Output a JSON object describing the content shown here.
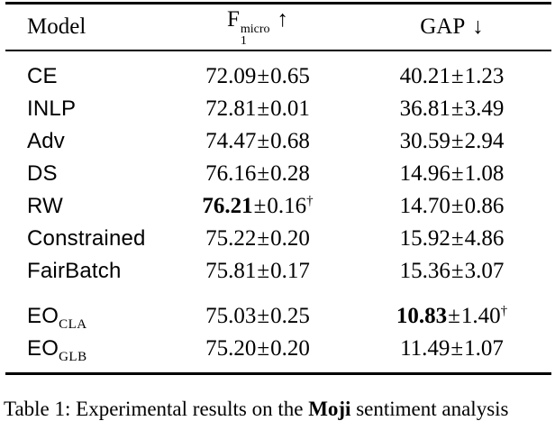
{
  "table": {
    "plus_minus": "±",
    "header": {
      "model": "Model",
      "f1_base": "F",
      "f1_sup": "micro",
      "f1_sub": "1",
      "f1_arrow": "↑",
      "gap": "GAP",
      "gap_arrow": "↓"
    },
    "rows": [
      {
        "model": "CE",
        "model_sub": "",
        "f1": {
          "mean": "72.09",
          "std": "0.65",
          "bold": false,
          "dagger": ""
        },
        "gap": {
          "mean": "40.21",
          "std": "1.23",
          "bold": false,
          "dagger": ""
        }
      },
      {
        "model": "INLP",
        "model_sub": "",
        "f1": {
          "mean": "72.81",
          "std": "0.01",
          "bold": false,
          "dagger": ""
        },
        "gap": {
          "mean": "36.81",
          "std": "3.49",
          "bold": false,
          "dagger": ""
        }
      },
      {
        "model": "Adv",
        "model_sub": "",
        "f1": {
          "mean": "74.47",
          "std": "0.68",
          "bold": false,
          "dagger": ""
        },
        "gap": {
          "mean": "30.59",
          "std": "2.94",
          "bold": false,
          "dagger": ""
        }
      },
      {
        "model": "DS",
        "model_sub": "",
        "f1": {
          "mean": "76.16",
          "std": "0.28",
          "bold": false,
          "dagger": ""
        },
        "gap": {
          "mean": "14.96",
          "std": "1.08",
          "bold": false,
          "dagger": ""
        }
      },
      {
        "model": "RW",
        "model_sub": "",
        "f1": {
          "mean": "76.21",
          "std": "0.16",
          "bold": true,
          "dagger": "†"
        },
        "gap": {
          "mean": "14.70",
          "std": "0.86",
          "bold": false,
          "dagger": ""
        }
      },
      {
        "model": "Constrained",
        "model_sub": "",
        "f1": {
          "mean": "75.22",
          "std": "0.20",
          "bold": false,
          "dagger": ""
        },
        "gap": {
          "mean": "15.92",
          "std": "4.86",
          "bold": false,
          "dagger": ""
        }
      },
      {
        "model": "FairBatch",
        "model_sub": "",
        "f1": {
          "mean": "75.81",
          "std": "0.17",
          "bold": false,
          "dagger": ""
        },
        "gap": {
          "mean": "15.36",
          "std": "3.07",
          "bold": false,
          "dagger": ""
        }
      },
      {
        "model": "EO",
        "model_sub": "CLA",
        "f1": {
          "mean": "75.03",
          "std": "0.25",
          "bold": false,
          "dagger": ""
        },
        "gap": {
          "mean": "10.83",
          "std": "1.40",
          "bold": true,
          "dagger": "†"
        }
      },
      {
        "model": "EO",
        "model_sub": "GLB",
        "f1": {
          "mean": "75.20",
          "std": "0.20",
          "bold": false,
          "dagger": ""
        },
        "gap": {
          "mean": "11.49",
          "std": "1.07",
          "bold": false,
          "dagger": ""
        }
      }
    ]
  },
  "caption": {
    "prefix": "Table 1: Experimental results on the ",
    "highlight": "Moji",
    "suffix": " sentiment analysis"
  }
}
